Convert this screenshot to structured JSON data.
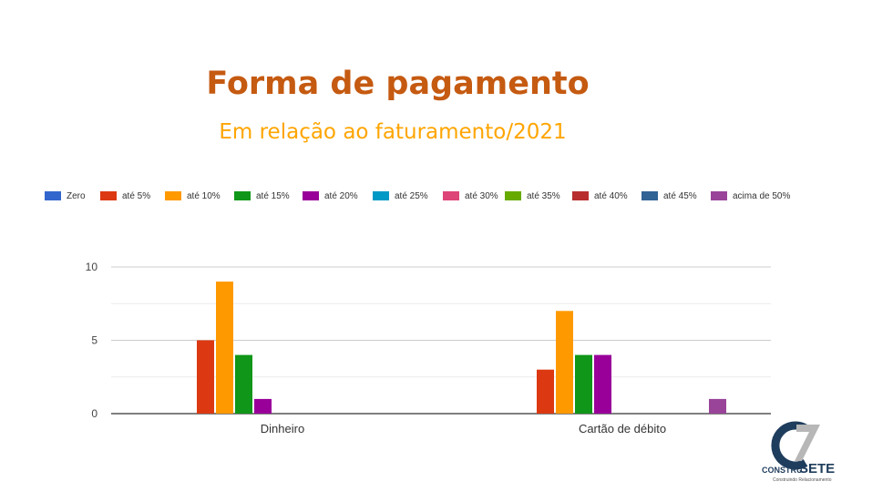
{
  "title": "Forma de pagamento",
  "subtitle": "Em relação ao faturamento/2021",
  "chart_data": {
    "type": "bar",
    "categories": [
      "Dinheiro",
      "Cartão de débito"
    ],
    "series": [
      {
        "name": "Zero",
        "color": "#3366cc",
        "values": [
          0,
          0
        ]
      },
      {
        "name": "até 5%",
        "color": "#dc3912",
        "values": [
          5,
          3
        ]
      },
      {
        "name": "até 10%",
        "color": "#ff9900",
        "values": [
          9,
          7
        ]
      },
      {
        "name": "até 15%",
        "color": "#109618",
        "values": [
          4,
          4
        ]
      },
      {
        "name": "até 20%",
        "color": "#990099",
        "values": [
          1,
          4
        ]
      },
      {
        "name": "até 25%",
        "color": "#0099c6",
        "values": [
          0,
          0
        ]
      },
      {
        "name": "até 30%",
        "color": "#dd4477",
        "values": [
          0,
          0
        ]
      },
      {
        "name": "até 35%",
        "color": "#66aa00",
        "values": [
          0,
          0
        ]
      },
      {
        "name": "até 40%",
        "color": "#b82e2e",
        "values": [
          0,
          0
        ]
      },
      {
        "name": "até 45%",
        "color": "#316395",
        "values": [
          0,
          0
        ]
      },
      {
        "name": "acima de 50%",
        "color": "#994499",
        "values": [
          0,
          1
        ]
      }
    ],
    "ylim": [
      0,
      10
    ],
    "yticks": [
      0,
      5,
      10
    ],
    "grid": true,
    "legend_position": "top"
  },
  "logo": {
    "brand_left": "CONSTRU",
    "brand_right": "SETE",
    "tagline": "Construindo Relacionamento"
  }
}
